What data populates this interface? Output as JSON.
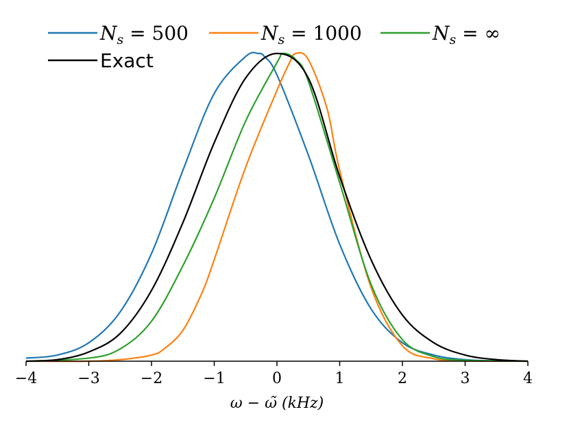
{
  "chart_data": {
    "type": "line",
    "xlabel": "ω − ω̃ (kHz)",
    "ylabel": "",
    "xlim": [
      -4,
      4
    ],
    "ylim": [
      0,
      1
    ],
    "xticks": [
      -4,
      -3,
      -2,
      -1,
      0,
      1,
      2,
      3,
      4
    ],
    "grid": false,
    "legend_placement": "top",
    "series": [
      {
        "name": "N_s = 500",
        "label_main": "N",
        "label_sub": "s",
        "label_rest": " = 500",
        "color": "#1f77b4",
        "x": [
          -4.0,
          -3.5,
          -3.0,
          -2.5,
          -2.0,
          -1.5,
          -1.0,
          -0.5,
          -0.3,
          -0.2,
          0.0,
          0.5,
          1.0,
          1.5,
          2.0,
          2.5,
          3.0,
          3.5,
          4.0
        ],
        "y": [
          0.01,
          0.02,
          0.06,
          0.16,
          0.35,
          0.62,
          0.87,
          0.99,
          1.0,
          0.99,
          0.93,
          0.67,
          0.38,
          0.17,
          0.06,
          0.02,
          0.005,
          0.001,
          0.0
        ]
      },
      {
        "name": "N_s = 1000",
        "label_main": "N",
        "label_sub": "s",
        "label_rest": " = 1000",
        "color": "#ff7f0e",
        "x": [
          -4.0,
          -3.0,
          -2.5,
          -2.0,
          -1.8,
          -1.5,
          -1.2,
          -1.0,
          -0.5,
          0.0,
          0.2,
          0.3,
          0.5,
          0.8,
          1.0,
          1.5,
          2.0,
          2.5,
          3.0,
          4.0
        ],
        "y": [
          0.0,
          0.0,
          0.005,
          0.02,
          0.04,
          0.1,
          0.22,
          0.33,
          0.63,
          0.88,
          0.97,
          1.0,
          0.98,
          0.82,
          0.62,
          0.24,
          0.05,
          0.008,
          0.001,
          0.0
        ]
      },
      {
        "name": "N_s = ∞",
        "label_main": "N",
        "label_sub": "s",
        "label_rest": " = ∞",
        "color": "#2ca02c",
        "x": [
          -4.0,
          -3.0,
          -2.5,
          -2.0,
          -1.5,
          -1.0,
          -0.5,
          0.0,
          0.1,
          0.3,
          0.5,
          1.0,
          1.5,
          2.0,
          2.5,
          3.0,
          4.0
        ],
        "y": [
          0.0,
          0.01,
          0.04,
          0.13,
          0.31,
          0.53,
          0.78,
          0.97,
          1.0,
          0.98,
          0.91,
          0.58,
          0.25,
          0.07,
          0.015,
          0.003,
          0.0
        ]
      },
      {
        "name": "Exact",
        "color": "#000000",
        "x": [
          -4.0,
          -3.5,
          -3.0,
          -2.5,
          -2.0,
          -1.5,
          -1.0,
          -0.5,
          0.0,
          0.5,
          1.0,
          1.5,
          2.0,
          2.5,
          3.0,
          3.5,
          4.0
        ],
        "y": [
          0.0,
          0.005,
          0.03,
          0.09,
          0.23,
          0.45,
          0.71,
          0.92,
          1.0,
          0.92,
          0.6,
          0.33,
          0.15,
          0.06,
          0.02,
          0.005,
          0.0
        ]
      }
    ]
  }
}
